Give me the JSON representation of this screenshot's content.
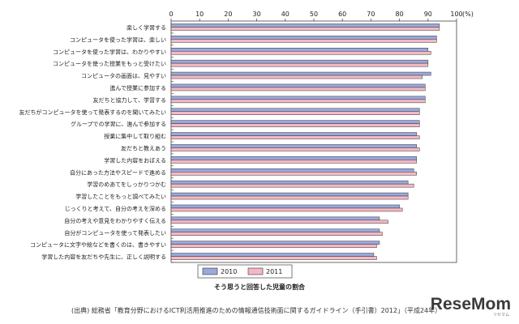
{
  "chart_data": {
    "type": "bar",
    "orientation": "horizontal",
    "unit": "(%)",
    "xlim": [
      0,
      100
    ],
    "xticks": [
      0,
      10,
      20,
      30,
      40,
      50,
      60,
      70,
      80,
      90,
      100
    ],
    "grid": false,
    "legend_position": "bottom-left",
    "categories": [
      "楽しく学習する",
      "コンピュータを使った学習は、楽しい",
      "コンピュータを使った学習は、わかりやすい",
      "コンピュータを使った授業をもっと受けたい",
      "コンピュータの画面は、見やすい",
      "進んで授業に参加する",
      "友だちと協力して、学習する",
      "友だちがコンピュータを使って発表するのを聞いてみたい",
      "グループでの学習に、進んで参加する",
      "授業に集中して取り組む",
      "友だちと教えあう",
      "学習した内容をおぼえる",
      "自分にあった方法やスピードで進める",
      "学習のめあてをしっかりつかむ",
      "学習したことをもっと調べてみたい",
      "じっくりと考えて、自分の考えを深める",
      "自分の考えや意見をわかりやすく伝える",
      "自分がコンピュータを使って発表したい",
      "コンピュータに文字や絵などを書くのは、書きやすい",
      "学習した内容を友だちや先生に、正しく説明する"
    ],
    "series": [
      {
        "name": "2010",
        "color": "#9aa8dc",
        "values": [
          94,
          93,
          90,
          90,
          91,
          89,
          89,
          87,
          87,
          86,
          86,
          86,
          85,
          83,
          83,
          80,
          73,
          73,
          73,
          71
        ]
      },
      {
        "name": "2011",
        "color": "#f4b8c4",
        "values": [
          94,
          93,
          91,
          90,
          88,
          89,
          89,
          87,
          87,
          87,
          87,
          86,
          86,
          85,
          83,
          81,
          76,
          74,
          72,
          72
        ]
      }
    ]
  },
  "caption": "そう思うと回答した児童の割合",
  "source": "(出典) 総務省「教育分野におけるICT利活用推進のための情報通信技術面に関するガイドライン（手引書）2012」（平成24年）",
  "logo": {
    "text": "ReseMom",
    "sub": "リセマム",
    "color": "#3a3a3a"
  }
}
